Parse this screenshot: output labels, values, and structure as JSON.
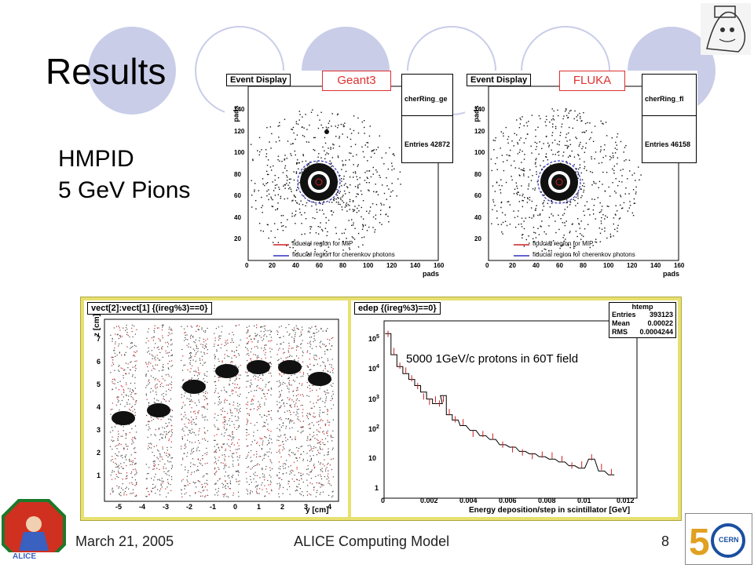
{
  "slide": {
    "title": "Results",
    "subtitle_line1": "HMPID",
    "subtitle_line2": "5 GeV Pions",
    "footer_date": "March 21, 2005",
    "footer_title": "ALICE Computing Model",
    "page_number": "8",
    "logo_left_text": "ALICE",
    "logo_right_text": "CERN"
  },
  "event_displays": [
    {
      "tag": "Geant3",
      "panel_title": "Event Display",
      "hist_name": "cherRing_ge",
      "entries_label": "Entries",
      "entries_value": "42872",
      "ylabel": "pads",
      "xlabel": "pads",
      "x_ticks": [
        "0",
        "20",
        "40",
        "60",
        "80",
        "100",
        "120",
        "140",
        "160"
      ],
      "y_ticks": [
        "20",
        "40",
        "60",
        "80",
        "100",
        "120",
        "140"
      ],
      "legend_mip": "fiducial region for MIP",
      "legend_cherenkov": "fiducial region for cherenkov photons"
    },
    {
      "tag": "FLUKA",
      "panel_title": "Event Display",
      "hist_name": "cherRing_fl",
      "entries_label": "Entries",
      "entries_value": "46158",
      "ylabel": "pads",
      "xlabel": "pads",
      "x_ticks": [
        "0",
        "20",
        "40",
        "60",
        "80",
        "100",
        "120",
        "140",
        "160"
      ],
      "y_ticks": [
        "20",
        "40",
        "60",
        "80",
        "100",
        "120",
        "140"
      ],
      "legend_mip": "fiducial region for MIP",
      "legend_cherenkov": "fiducial region for cherenkov photons"
    }
  ],
  "scatter_panel": {
    "title": "vect[2]:vect[1] {(ireg%3)==0}",
    "xlabel": "y [cm]",
    "ylabel": "z [cm]",
    "x_ticks": [
      "-5",
      "-4",
      "-3",
      "-2",
      "-1",
      "0",
      "1",
      "2",
      "3",
      "4"
    ],
    "y_ticks": [
      "1",
      "2",
      "3",
      "4",
      "5",
      "6",
      "7"
    ]
  },
  "edep_panel": {
    "title": "edep {(ireg%3)==0}",
    "stats": {
      "name": "htemp",
      "rows": [
        {
          "label": "Entries",
          "value": "393123"
        },
        {
          "label": "Mean",
          "value": "0.00022"
        },
        {
          "label": "RMS",
          "value": "0.0004244"
        }
      ]
    },
    "annotation": "5000 1GeV/c protons in 60T field",
    "xlabel": "Energy deposition/step in scintillator [GeV]",
    "x_ticks": [
      "0",
      "0.002",
      "0.004",
      "0.006",
      "0.008",
      "0.01",
      "0.012"
    ],
    "y_ticks": [
      "1",
      "10",
      "10",
      "10",
      "10",
      "10"
    ],
    "y_exponents": [
      "",
      "",
      "2",
      "3",
      "4",
      "5"
    ]
  },
  "colors": {
    "circle_fill": "#c9cde8",
    "accent_red": "#e03030",
    "plot_border_yellow": "#e8e070",
    "hist_red": "#d02020"
  },
  "chart_data": {
    "type": "line",
    "title": "edep {(ireg%3)==0}",
    "xlabel": "Energy deposition/step in scintillator [GeV]",
    "ylabel": "",
    "xlim": [
      0,
      0.012
    ],
    "ylog": true,
    "series": [
      {
        "name": "",
        "x": [
          0.0002,
          0.0005,
          0.0008,
          0.0011,
          0.0014,
          0.0017,
          0.002,
          0.0023,
          0.0026,
          0.0028,
          0.003,
          0.0033,
          0.0036,
          0.004,
          0.0045,
          0.005,
          0.0055,
          0.006,
          0.0065,
          0.007,
          0.0075,
          0.008,
          0.0085,
          0.009,
          0.0095,
          0.01,
          0.0105,
          0.011,
          0.0115
        ],
        "values": [
          150000,
          30000,
          12000,
          7000,
          4500,
          2800,
          1700,
          1000,
          700,
          700,
          1300,
          300,
          200,
          130,
          90,
          60,
          45,
          30,
          25,
          18,
          15,
          12,
          10,
          8,
          6,
          5,
          10,
          4,
          3
        ]
      }
    ]
  }
}
